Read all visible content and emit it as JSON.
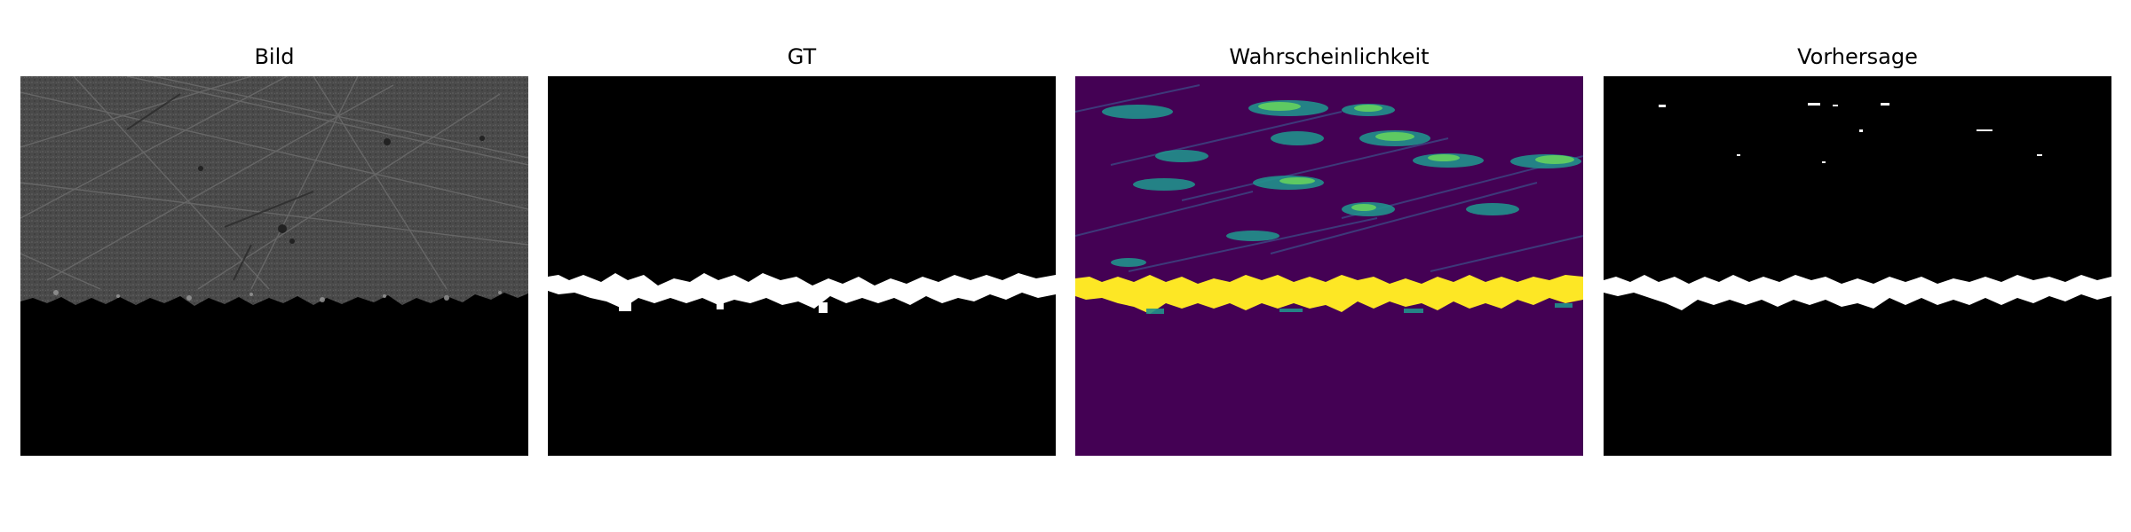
{
  "panels": [
    {
      "title": "Bild"
    },
    {
      "title": "GT"
    },
    {
      "title": "Wahrscheinlichkeit"
    },
    {
      "title": "Vorhersage"
    }
  ],
  "colors": {
    "background": "#ffffff",
    "image_gray": "#4d4d4d",
    "mask_black": "#000000",
    "mask_white": "#ffffff",
    "viridis_low": "#440154",
    "viridis_mid": "#21918c",
    "viridis_high": "#5ec962",
    "viridis_max": "#fde725"
  }
}
